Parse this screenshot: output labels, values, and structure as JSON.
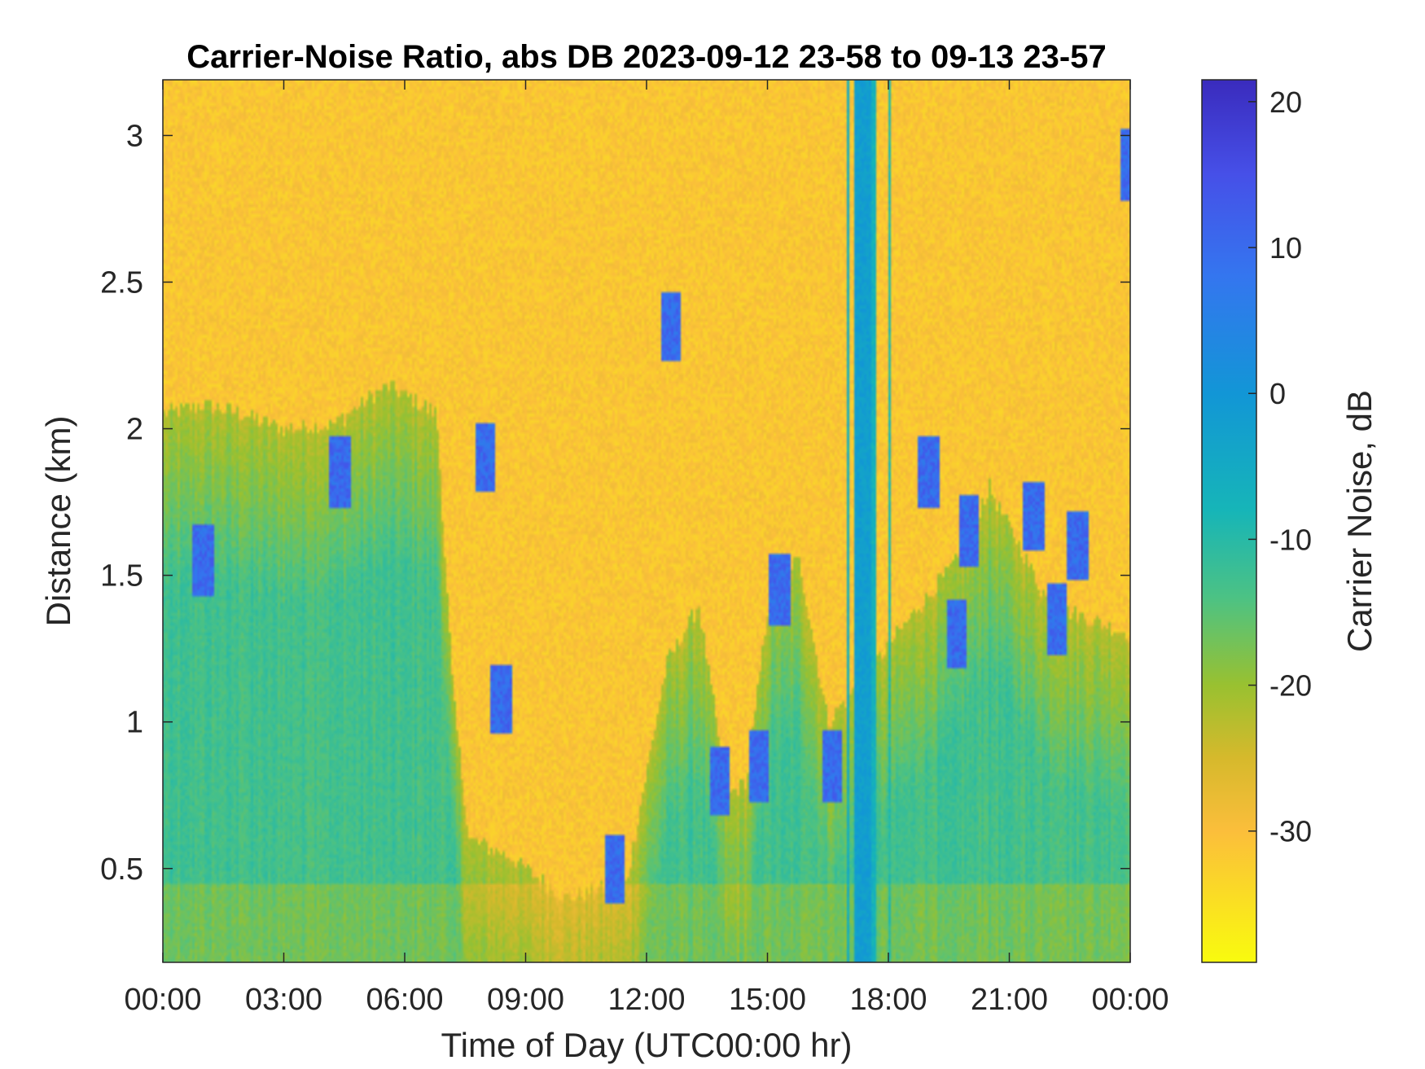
{
  "chart_data": {
    "type": "heatmap",
    "title": "Carrier-Noise Ratio, abs DB 2023-09-12 23-58 to 09-13 23-57",
    "xlabel": "Time of Day (UTC00:00 hr)",
    "ylabel": "Distance (km)",
    "colorbar_label": "Carrier Noise, dB",
    "x_ticks": [
      {
        "hour": 0,
        "label": "00:00"
      },
      {
        "hour": 3,
        "label": "03:00"
      },
      {
        "hour": 6,
        "label": "06:00"
      },
      {
        "hour": 9,
        "label": "09:00"
      },
      {
        "hour": 12,
        "label": "12:00"
      },
      {
        "hour": 15,
        "label": "15:00"
      },
      {
        "hour": 18,
        "label": "18:00"
      },
      {
        "hour": 21,
        "label": "21:00"
      },
      {
        "hour": 24,
        "label": "00:00"
      }
    ],
    "y_ticks": [
      {
        "value": 0.5,
        "label": "0.5"
      },
      {
        "value": 1,
        "label": "1"
      },
      {
        "value": 1.5,
        "label": "1.5"
      },
      {
        "value": 2,
        "label": "2"
      },
      {
        "value": 2.5,
        "label": "2.5"
      },
      {
        "value": 3,
        "label": "3"
      }
    ],
    "xlim_hours": [
      0,
      24
    ],
    "ylim_km": [
      0.18,
      3.19
    ],
    "clim_db": [
      -39,
      21.5
    ],
    "colorbar_ticks": [
      {
        "value": 20,
        "label": "20"
      },
      {
        "value": 10,
        "label": "10"
      },
      {
        "value": 0,
        "label": "0"
      },
      {
        "value": -10,
        "label": "-10"
      },
      {
        "value": -20,
        "label": "-20"
      },
      {
        "value": -30,
        "label": "-30"
      }
    ],
    "colormap": "parula (reversed)",
    "colormap_stops": [
      {
        "db": -39,
        "color": "#f9fb0e"
      },
      {
        "db": -30,
        "color": "#fbbe3b"
      },
      {
        "db": -25,
        "color": "#d6b92c"
      },
      {
        "db": -20,
        "color": "#99c130"
      },
      {
        "db": -14,
        "color": "#4cc284"
      },
      {
        "db": -8,
        "color": "#16b5b8"
      },
      {
        "db": 0,
        "color": "#1296d6"
      },
      {
        "db": 8,
        "color": "#3476ef"
      },
      {
        "db": 15,
        "color": "#4650e8"
      },
      {
        "db": 21.5,
        "color": "#3a2bbd"
      }
    ],
    "background_level_db": -31,
    "boundary_layer_top_km": [
      {
        "hour": 0,
        "km": 2.05
      },
      {
        "hour": 1,
        "km": 2.08
      },
      {
        "hour": 2,
        "km": 2.05
      },
      {
        "hour": 3,
        "km": 2.0
      },
      {
        "hour": 4.3,
        "km": 2.02
      },
      {
        "hour": 5.6,
        "km": 2.15
      },
      {
        "hour": 6.8,
        "km": 2.05
      },
      {
        "hour": 7.2,
        "km": 1.1
      },
      {
        "hour": 7.6,
        "km": 0.6
      },
      {
        "hour": 8.5,
        "km": 0.55
      },
      {
        "hour": 10,
        "km": 0.4
      },
      {
        "hour": 11.5,
        "km": 0.45
      },
      {
        "hour": 12.5,
        "km": 1.2
      },
      {
        "hour": 13.3,
        "km": 1.4
      },
      {
        "hour": 14.0,
        "km": 0.75
      },
      {
        "hour": 14.5,
        "km": 0.8
      },
      {
        "hour": 15.1,
        "km": 1.5
      },
      {
        "hour": 15.8,
        "km": 1.55
      },
      {
        "hour": 16.5,
        "km": 1.0
      },
      {
        "hour": 18.5,
        "km": 1.35
      },
      {
        "hour": 19.7,
        "km": 1.55
      },
      {
        "hour": 20.5,
        "km": 1.8
      },
      {
        "hour": 22,
        "km": 1.4
      },
      {
        "hour": 24,
        "km": 1.3
      }
    ],
    "cloud_base_km": [
      {
        "hour": 1,
        "km": 1.55
      },
      {
        "hour": 4.4,
        "km": 1.85
      },
      {
        "hour": 8.0,
        "km": 1.9
      },
      {
        "hour": 8.4,
        "km": 1.08
      },
      {
        "hour": 11.2,
        "km": 0.5
      },
      {
        "hour": 12.6,
        "km": 2.35
      },
      {
        "hour": 13.8,
        "km": 0.8
      },
      {
        "hour": 14.8,
        "km": 0.85
      },
      {
        "hour": 15.3,
        "km": 1.45
      },
      {
        "hour": 16.6,
        "km": 0.85
      },
      {
        "hour": 19.0,
        "km": 1.85
      },
      {
        "hour": 19.7,
        "km": 1.3
      },
      {
        "hour": 20.0,
        "km": 1.65
      },
      {
        "hour": 21.6,
        "km": 1.7
      },
      {
        "hour": 22.2,
        "km": 1.35
      },
      {
        "hour": 22.7,
        "km": 1.6
      },
      {
        "hour": 24,
        "km": 2.9
      }
    ],
    "vertical_bands": [
      {
        "hour_start": 16.95,
        "hour_end": 17.05,
        "db": -6
      },
      {
        "hour_start": 17.15,
        "hour_end": 17.55,
        "db": -2
      },
      {
        "hour_start": 17.6,
        "hour_end": 17.7,
        "db": -7
      },
      {
        "hour_start": 18.0,
        "hour_end": 18.05,
        "db": -10
      }
    ],
    "grid": false
  }
}
